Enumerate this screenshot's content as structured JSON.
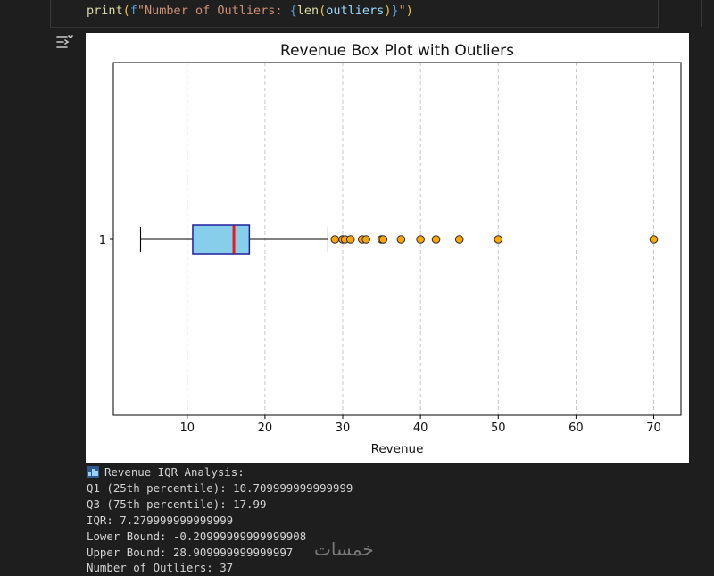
{
  "code": {
    "fn": "print",
    "open_paren": "(",
    "fprefix": "f",
    "str_part": "\"Number of Outliers: ",
    "brace_open": "{",
    "inner_fn": "len",
    "inner_open": "(",
    "var": "outliers",
    "inner_close": ")",
    "brace_close": "}",
    "str_end": "\"",
    "close_paren": ")"
  },
  "output_icon": "output-toggle-icon",
  "chart_data": {
    "type": "boxplot",
    "orientation": "horizontal",
    "title": "Revenue Box Plot with Outliers",
    "xlabel": "Revenue",
    "ylabel": "",
    "y_tick_labels": [
      "1"
    ],
    "xlim": [
      0.5,
      73.5
    ],
    "x_ticks": [
      10,
      20,
      30,
      40,
      50,
      60,
      70
    ],
    "grid": "x-dashed",
    "box": {
      "whisker_low": 4,
      "q1": 10.71,
      "median": 16,
      "q3": 17.99,
      "whisker_high": 28.1,
      "fill_color": "#87ceeb",
      "edge_color": "#1f1f9e",
      "median_color": "#e8191c"
    },
    "outliers": [
      29,
      30,
      30.3,
      31,
      32.5,
      33,
      35,
      35.2,
      37.5,
      40,
      42,
      45,
      50,
      70
    ],
    "outlier_color": "#ffa500"
  },
  "output": {
    "header": "Revenue IQR Analysis:",
    "lines": [
      "Q1 (25th percentile): 10.709999999999999",
      "Q3 (75th percentile): 17.99",
      "IQR: 7.279999999999999",
      "Lower Bound: -0.20999999999999908",
      "Upper Bound: 28.909999999999997",
      "Number of Outliers: 37"
    ]
  },
  "watermark": "خمسات"
}
